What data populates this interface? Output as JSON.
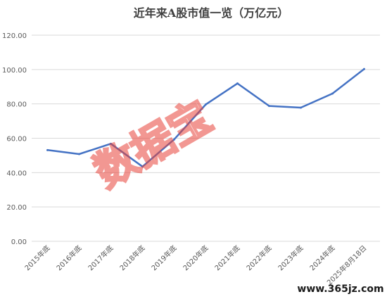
{
  "chart_data": {
    "type": "line",
    "title": "近年来A股市值一览（万亿元）",
    "xlabel": "",
    "ylabel": "",
    "categories": [
      "2015年底",
      "2016年底",
      "2017年底",
      "2018年底",
      "2019年底",
      "2020年底",
      "2021年底",
      "2022年底",
      "2023年底",
      "2024年底",
      "2025年8月18日"
    ],
    "series": [
      {
        "values": [
          53.1,
          50.8,
          56.8,
          43.5,
          59.3,
          79.7,
          91.9,
          78.8,
          77.8,
          86.0,
          100.3
        ]
      }
    ],
    "yticks": [
      "0.00",
      "20.00",
      "40.00",
      "60.00",
      "80.00",
      "100.00",
      "120.00"
    ],
    "ylim": [
      0,
      120
    ],
    "grid": true,
    "line_color": "#4472C4",
    "grid_color": "#D9D9D9"
  },
  "watermark": {
    "text": "数据宝",
    "color": "#E8433A"
  },
  "footer": {
    "site": "www.365jz.com"
  }
}
